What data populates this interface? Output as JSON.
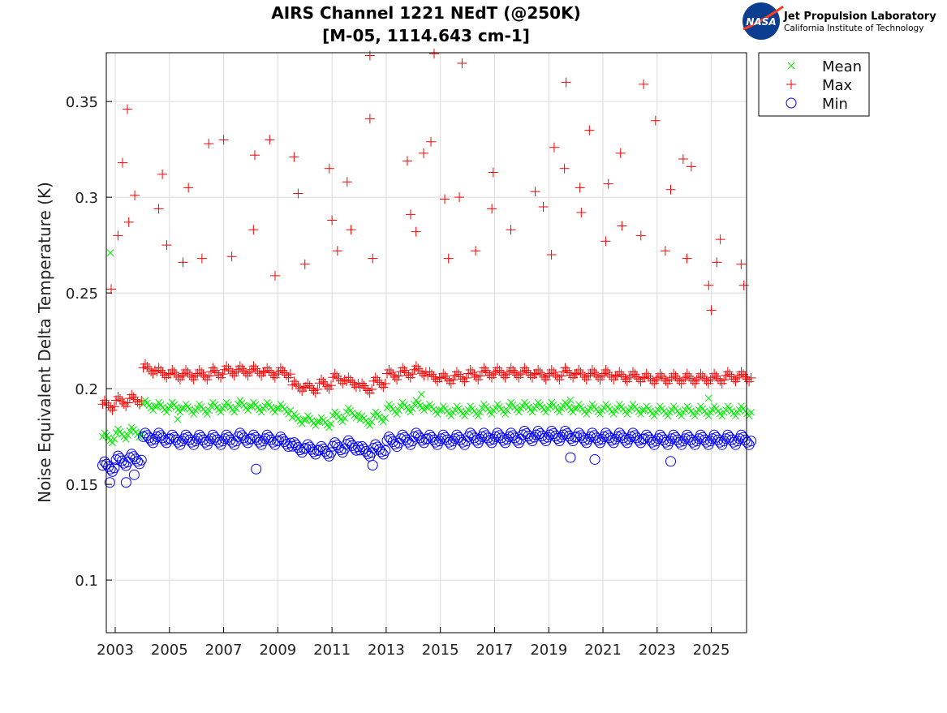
{
  "logo": {
    "org": "Jet Propulsion Laboratory",
    "sub": "California Institute of Technology",
    "badge": "NASA"
  },
  "chart_data": {
    "type": "scatter",
    "title": [
      "AIRS Channel 1221 NEdT (@250K)",
      "[M-05, 1114.643 cm-1]"
    ],
    "xlabel": "",
    "ylabel": "Noise Equivalent Delta Temperature (K)",
    "xlim": [
      2002.67,
      2026.3
    ],
    "ylim": [
      0.0725,
      0.3755
    ],
    "xticks": [
      2003,
      2005,
      2007,
      2009,
      2011,
      2013,
      2015,
      2017,
      2019,
      2021,
      2023,
      2025
    ],
    "yticks": [
      0.1,
      0.15,
      0.2,
      0.25,
      0.3,
      0.35
    ],
    "ytick_labels": [
      "0.1",
      "0.15",
      "0.2",
      "0.25",
      "0.3",
      "0.35"
    ],
    "grid": true,
    "legend_placement": "outside-top-right",
    "x": [
      2002.75,
      2003.25,
      2003.75,
      2004.25,
      2004.75,
      2005.25,
      2005.75,
      2006.25,
      2006.75,
      2007.25,
      2007.75,
      2008.25,
      2008.75,
      2009.25,
      2009.75,
      2010.25,
      2010.75,
      2011.25,
      2011.75,
      2012.25,
      2012.75,
      2013.25,
      2013.75,
      2014.25,
      2014.75,
      2015.25,
      2015.75,
      2016.25,
      2016.75,
      2017.25,
      2017.75,
      2018.25,
      2018.75,
      2019.25,
      2019.75,
      2020.25,
      2020.75,
      2021.25,
      2021.75,
      2022.25,
      2022.75,
      2023.25,
      2023.75,
      2024.25,
      2024.75,
      2025.25,
      2025.75,
      2026.25
    ],
    "series": [
      {
        "name": "Mean",
        "marker": "x",
        "color": "#00ee00",
        "values": [
          0.173,
          0.175,
          0.176,
          0.19,
          0.189,
          0.189,
          0.188,
          0.188,
          0.189,
          0.189,
          0.19,
          0.189,
          0.189,
          0.188,
          0.183,
          0.182,
          0.181,
          0.184,
          0.186,
          0.182,
          0.184,
          0.188,
          0.189,
          0.19,
          0.188,
          0.187,
          0.187,
          0.187,
          0.188,
          0.188,
          0.189,
          0.189,
          0.189,
          0.189,
          0.189,
          0.188,
          0.188,
          0.188,
          0.188,
          0.188,
          0.187,
          0.187,
          0.187,
          0.187,
          0.187,
          0.187,
          0.187,
          0.187
        ],
        "extra_points": [
          [
            2002.82,
            0.271
          ],
          [
            2005.3,
            0.184
          ],
          [
            2014.3,
            0.197
          ],
          [
            2019.8,
            0.194
          ],
          [
            2024.9,
            0.195
          ]
        ]
      },
      {
        "name": "Max",
        "marker": "+",
        "color": "#ff0000",
        "values": [
          0.19,
          0.192,
          0.193,
          0.209,
          0.207,
          0.206,
          0.206,
          0.206,
          0.207,
          0.208,
          0.208,
          0.208,
          0.207,
          0.207,
          0.2,
          0.199,
          0.201,
          0.204,
          0.202,
          0.199,
          0.202,
          0.206,
          0.207,
          0.208,
          0.205,
          0.204,
          0.205,
          0.206,
          0.207,
          0.207,
          0.207,
          0.207,
          0.206,
          0.206,
          0.207,
          0.206,
          0.206,
          0.206,
          0.205,
          0.205,
          0.204,
          0.204,
          0.204,
          0.204,
          0.204,
          0.204,
          0.205,
          0.205
        ],
        "extra_points": [
          [
            2003.45,
            0.346
          ],
          [
            2003.27,
            0.318
          ],
          [
            2003.72,
            0.301
          ],
          [
            2003.5,
            0.287
          ],
          [
            2002.85,
            0.252
          ],
          [
            2003.1,
            0.28
          ],
          [
            2004.74,
            0.312
          ],
          [
            2004.6,
            0.294
          ],
          [
            2004.9,
            0.275
          ],
          [
            2005.7,
            0.305
          ],
          [
            2005.5,
            0.266
          ],
          [
            2006.45,
            0.328
          ],
          [
            2006.2,
            0.268
          ],
          [
            2007.0,
            0.33
          ],
          [
            2007.3,
            0.269
          ],
          [
            2008.15,
            0.322
          ],
          [
            2008.1,
            0.283
          ],
          [
            2008.7,
            0.33
          ],
          [
            2008.9,
            0.259
          ],
          [
            2009.6,
            0.321
          ],
          [
            2009.75,
            0.302
          ],
          [
            2010.0,
            0.265
          ],
          [
            2010.9,
            0.315
          ],
          [
            2011.0,
            0.288
          ],
          [
            2011.2,
            0.272
          ],
          [
            2011.56,
            0.308
          ],
          [
            2011.7,
            0.283
          ],
          [
            2012.4,
            0.374
          ],
          [
            2012.4,
            0.341
          ],
          [
            2012.5,
            0.268
          ],
          [
            2013.78,
            0.319
          ],
          [
            2013.9,
            0.291
          ],
          [
            2014.1,
            0.282
          ],
          [
            2014.38,
            0.323
          ],
          [
            2014.65,
            0.329
          ],
          [
            2014.77,
            0.375
          ],
          [
            2015.16,
            0.299
          ],
          [
            2015.3,
            0.268
          ],
          [
            2015.8,
            0.37
          ],
          [
            2015.7,
            0.3
          ],
          [
            2016.3,
            0.272
          ],
          [
            2016.95,
            0.313
          ],
          [
            2016.9,
            0.294
          ],
          [
            2017.6,
            0.283
          ],
          [
            2018.5,
            0.303
          ],
          [
            2018.8,
            0.295
          ],
          [
            2019.2,
            0.326
          ],
          [
            2019.1,
            0.27
          ],
          [
            2019.64,
            0.36
          ],
          [
            2019.58,
            0.315
          ],
          [
            2020.15,
            0.305
          ],
          [
            2020.2,
            0.292
          ],
          [
            2020.5,
            0.335
          ],
          [
            2021.2,
            0.307
          ],
          [
            2021.1,
            0.277
          ],
          [
            2021.65,
            0.323
          ],
          [
            2021.7,
            0.285
          ],
          [
            2022.5,
            0.359
          ],
          [
            2022.4,
            0.28
          ],
          [
            2022.94,
            0.34
          ],
          [
            2023.5,
            0.304
          ],
          [
            2023.3,
            0.272
          ],
          [
            2023.96,
            0.32
          ],
          [
            2024.26,
            0.316
          ],
          [
            2024.1,
            0.268
          ],
          [
            2025.33,
            0.278
          ],
          [
            2025.2,
            0.266
          ],
          [
            2026.1,
            0.265
          ],
          [
            2026.2,
            0.254
          ],
          [
            2024.9,
            0.254
          ],
          [
            2025.0,
            0.241
          ]
        ]
      },
      {
        "name": "Min",
        "marker": "o",
        "color": "#0000ff",
        "values": [
          0.158,
          0.161,
          0.162,
          0.173,
          0.173,
          0.172,
          0.172,
          0.172,
          0.172,
          0.172,
          0.173,
          0.172,
          0.172,
          0.171,
          0.168,
          0.167,
          0.166,
          0.168,
          0.169,
          0.166,
          0.167,
          0.171,
          0.172,
          0.173,
          0.172,
          0.172,
          0.172,
          0.173,
          0.173,
          0.173,
          0.173,
          0.174,
          0.174,
          0.174,
          0.174,
          0.173,
          0.173,
          0.173,
          0.173,
          0.173,
          0.172,
          0.172,
          0.172,
          0.172,
          0.172,
          0.172,
          0.172,
          0.172
        ],
        "extra_points": [
          [
            2002.8,
            0.151
          ],
          [
            2003.4,
            0.151
          ],
          [
            2003.7,
            0.155
          ],
          [
            2008.2,
            0.158
          ],
          [
            2012.5,
            0.16
          ],
          [
            2019.8,
            0.164
          ],
          [
            2020.7,
            0.163
          ],
          [
            2023.5,
            0.162
          ]
        ]
      }
    ]
  }
}
